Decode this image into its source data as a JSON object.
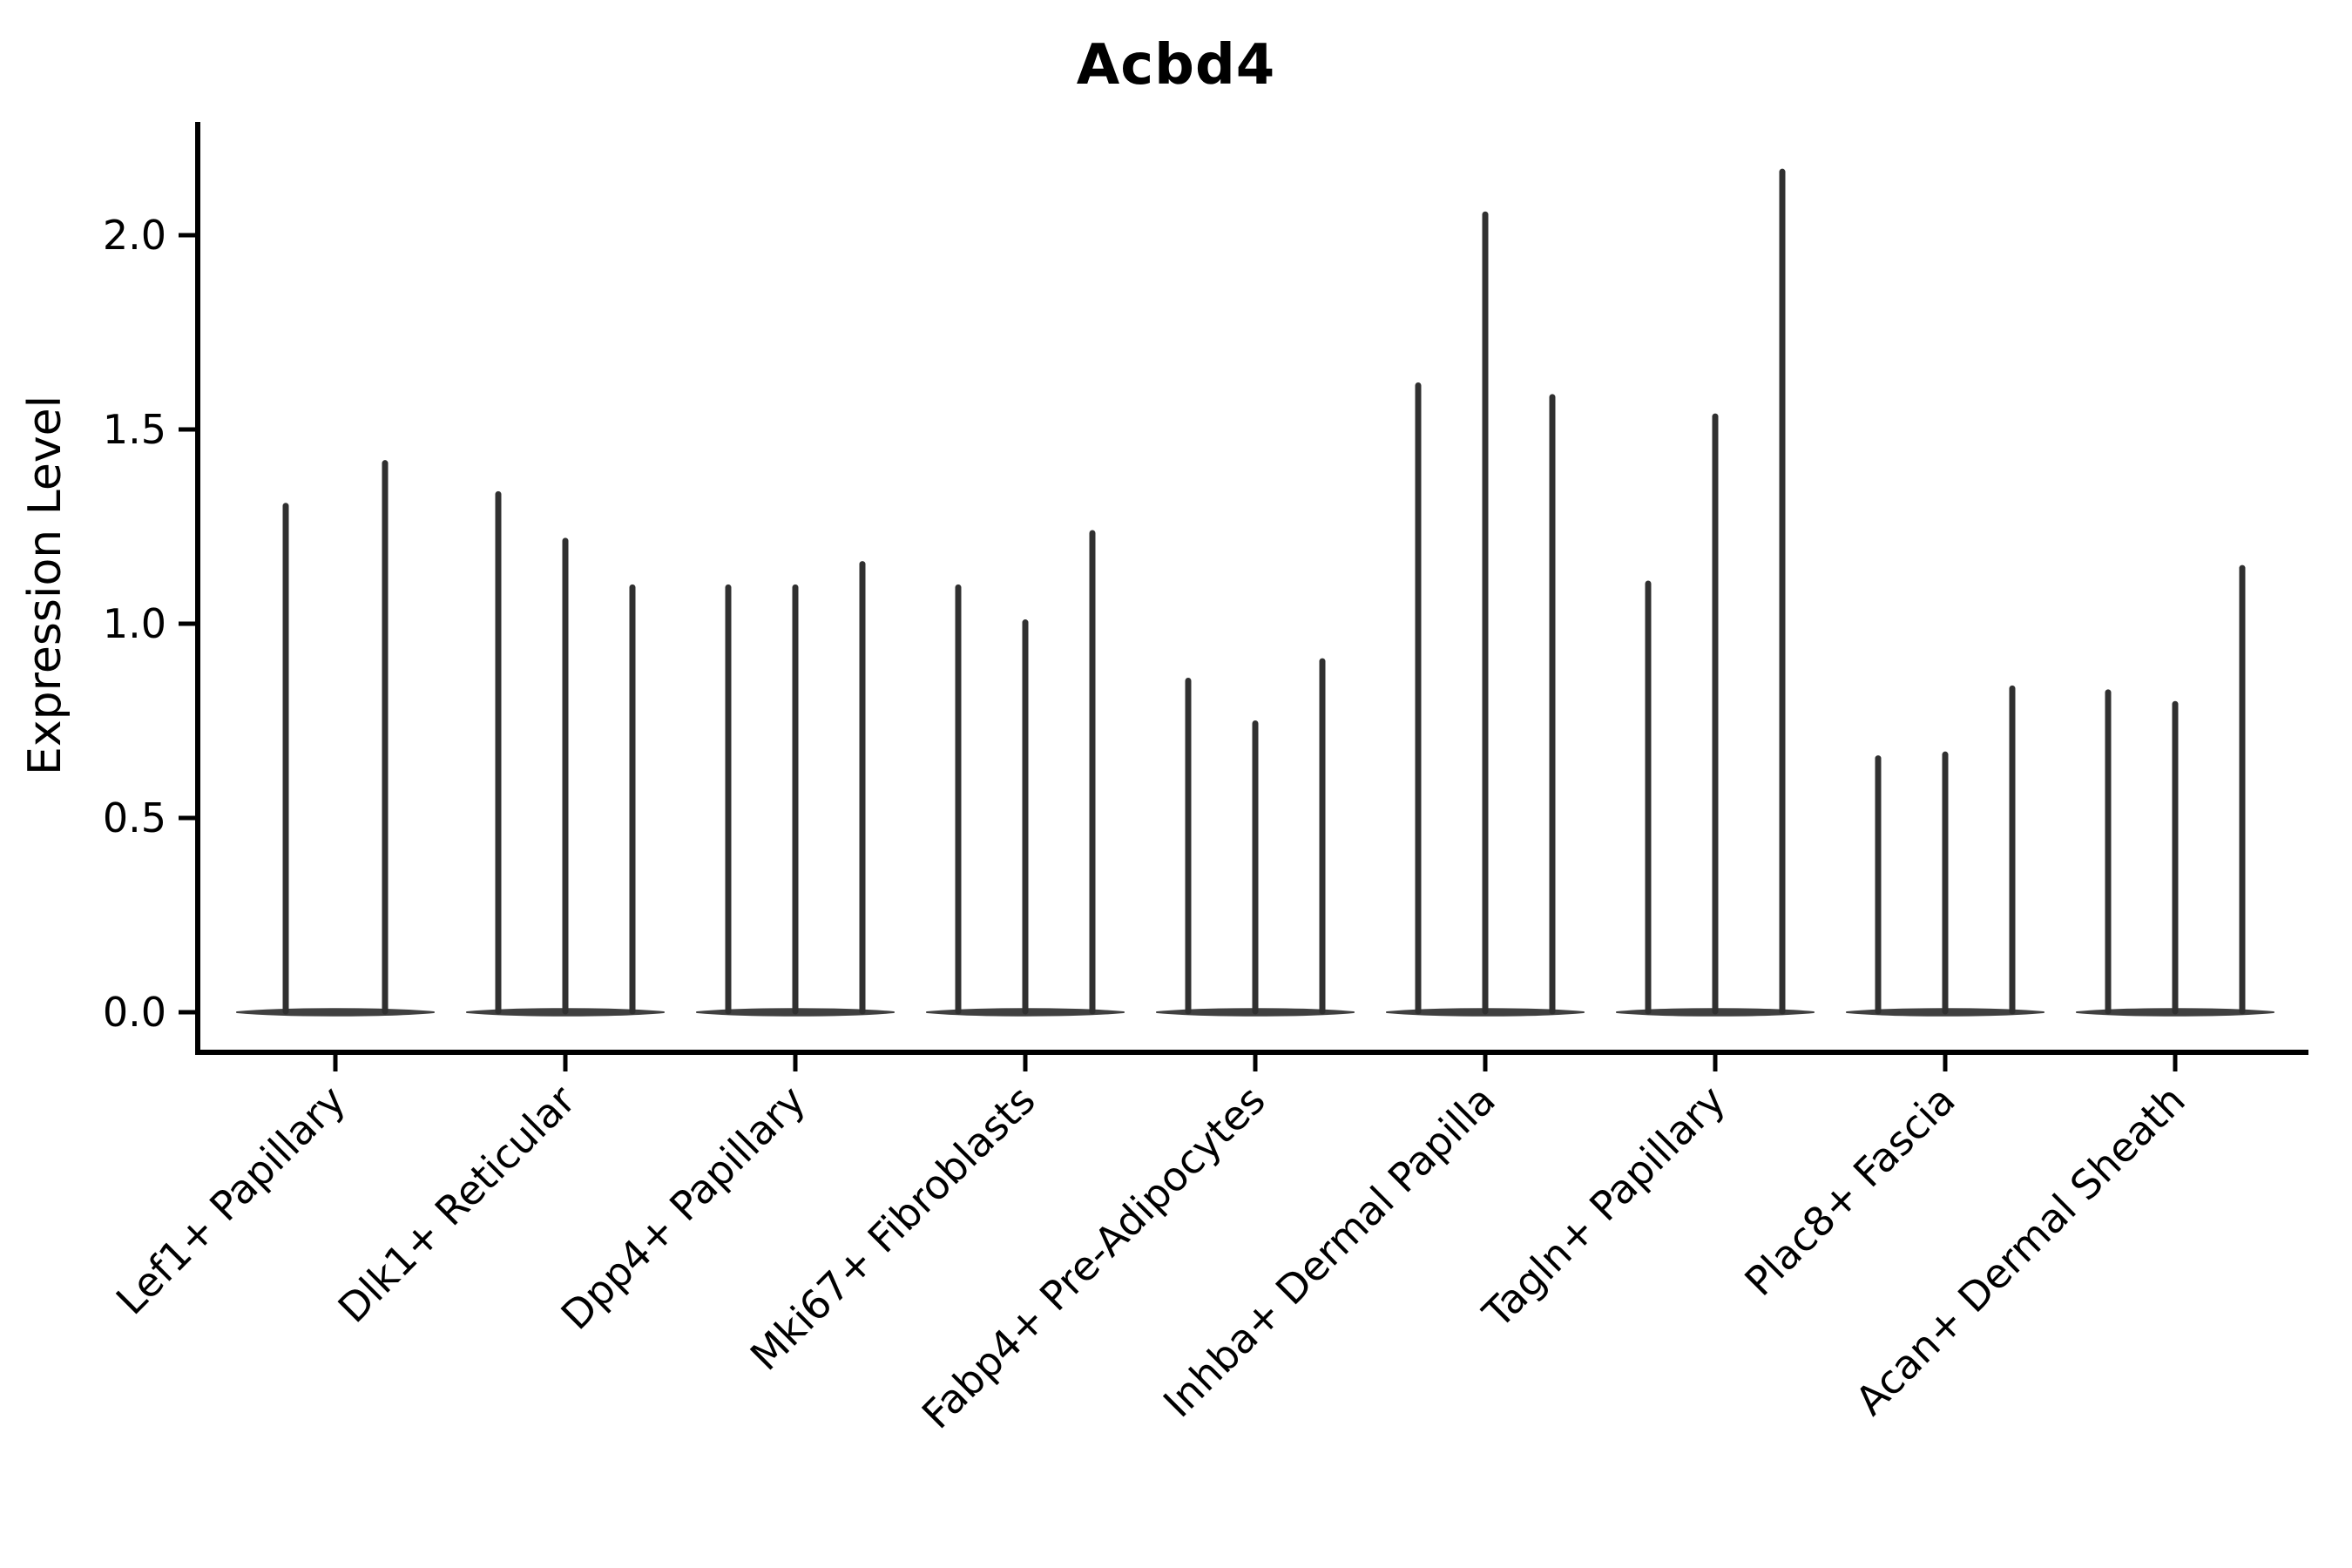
{
  "chart_data": {
    "type": "violin",
    "title": "Acbd4",
    "ylabel": "Expression Level",
    "xlabel": "",
    "grid": false,
    "legend": false,
    "background": "#ffffff",
    "colors": {
      "violin": "#303030",
      "axis": "#000000",
      "text": "#000000"
    },
    "ytick_labels": [
      "0.0",
      "0.5",
      "1.0",
      "1.5",
      "2.0"
    ],
    "ytick_values": [
      0.0,
      0.5,
      1.0,
      1.5,
      2.0
    ],
    "ylim": [
      -0.05,
      2.29
    ],
    "categories": [
      "Lef1+ Papillary",
      "Dlk1+ Reticular",
      "Dpp4+ Papillary",
      "Mki67+ Fibroblasts",
      "Fabp4+ Pre-Adipocytes",
      "Inhba+ Dermal Papilla",
      "Tagln+ Papillary",
      "Plac8+ Fascia",
      "Acan+ Dermal Sheath"
    ],
    "series": [
      {
        "name": "Lef1+ Papillary",
        "spike_maxima": [
          1.31,
          1.42
        ]
      },
      {
        "name": "Dlk1+ Reticular",
        "spike_maxima": [
          1.34,
          1.22,
          1.1
        ]
      },
      {
        "name": "Dpp4+ Papillary",
        "spike_maxima": [
          1.1,
          1.1,
          1.16
        ]
      },
      {
        "name": "Mki67+ Fibroblasts",
        "spike_maxima": [
          1.1,
          1.01,
          1.24
        ]
      },
      {
        "name": "Fabp4+ Pre-Adipocytes",
        "spike_maxima": [
          0.86,
          0.75,
          0.91
        ]
      },
      {
        "name": "Inhba+ Dermal Papilla",
        "spike_maxima": [
          1.62,
          2.06,
          1.59
        ]
      },
      {
        "name": "Tagln+ Papillary",
        "spike_maxima": [
          1.11,
          1.54,
          2.17
        ]
      },
      {
        "name": "Plac8+ Fascia",
        "spike_maxima": [
          0.66,
          0.67,
          0.84
        ]
      },
      {
        "name": "Acan+ Dermal Sheath",
        "spike_maxima": [
          0.83,
          0.8,
          1.15
        ]
      }
    ],
    "violin_note": "All violins are concentrated at expression 0 (wide flat base) with a thin spike up to each maximum"
  }
}
